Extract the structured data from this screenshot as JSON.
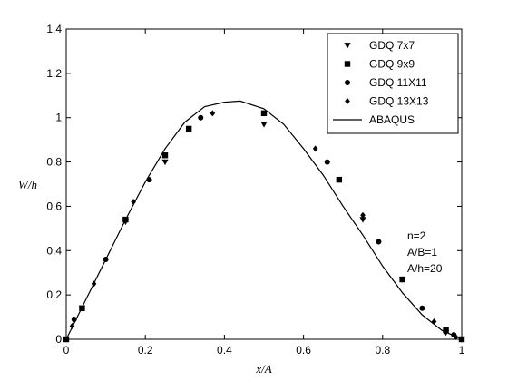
{
  "chart_data": {
    "type": "scatter",
    "title": "",
    "xlabel": "x/A",
    "ylabel": "W/h",
    "xlim": [
      0,
      1
    ],
    "ylim": [
      0,
      1.4
    ],
    "xticks": [
      0,
      0.2,
      0.4,
      0.6,
      0.8,
      1
    ],
    "yticks": [
      0,
      0.2,
      0.4,
      0.6,
      0.8,
      1,
      1.2,
      1.4
    ],
    "xtick_labels": [
      "0",
      "0.2",
      "0.4",
      "0.6",
      "0.8",
      "1"
    ],
    "ytick_labels": [
      "0",
      "0.2",
      "0.4",
      "0.6",
      "0.8",
      "1",
      "1.2",
      "1.4"
    ],
    "grid": false,
    "legend_position": "top-right",
    "annotations": [
      "n=2",
      "A/B=1",
      "A/h=20"
    ],
    "series": [
      {
        "name": "GDQ 7x7",
        "marker": "triangle-down",
        "x": [
          0,
          0.04,
          0.15,
          0.25,
          0.5,
          0.75,
          0.85,
          0.96,
          1
        ],
        "y": [
          0,
          0.14,
          0.53,
          0.8,
          0.97,
          0.54,
          0.27,
          0.03,
          0
        ]
      },
      {
        "name": "GDQ 9x9",
        "marker": "square",
        "x": [
          0,
          0.04,
          0.15,
          0.25,
          0.31,
          0.5,
          0.69,
          0.85,
          0.96,
          1
        ],
        "y": [
          0,
          0.14,
          0.54,
          0.83,
          0.95,
          1.02,
          0.72,
          0.27,
          0.04,
          0
        ]
      },
      {
        "name": "GDQ 11X11",
        "marker": "circle",
        "x": [
          0,
          0.02,
          0.1,
          0.21,
          0.34,
          0.66,
          0.79,
          0.9,
          0.98,
          1
        ],
        "y": [
          0,
          0.09,
          0.36,
          0.72,
          1.0,
          0.8,
          0.44,
          0.14,
          0.02,
          0
        ]
      },
      {
        "name": "GDQ 13X13",
        "marker": "diamond",
        "x": [
          0,
          0.015,
          0.07,
          0.17,
          0.37,
          0.63,
          0.75,
          0.93,
          0.985,
          1
        ],
        "y": [
          0,
          0.06,
          0.25,
          0.62,
          1.02,
          0.86,
          0.56,
          0.08,
          0.01,
          0
        ]
      },
      {
        "name": "ABAQUS",
        "marker": "line",
        "x": [
          0,
          0.05,
          0.1,
          0.15,
          0.2,
          0.25,
          0.3,
          0.35,
          0.4,
          0.44,
          0.5,
          0.55,
          0.6,
          0.65,
          0.7,
          0.75,
          0.8,
          0.85,
          0.9,
          0.95,
          1
        ],
        "y": [
          0,
          0.18,
          0.36,
          0.54,
          0.71,
          0.86,
          0.98,
          1.05,
          1.07,
          1.075,
          1.04,
          0.97,
          0.86,
          0.74,
          0.6,
          0.47,
          0.33,
          0.21,
          0.11,
          0.04,
          0
        ]
      }
    ]
  }
}
